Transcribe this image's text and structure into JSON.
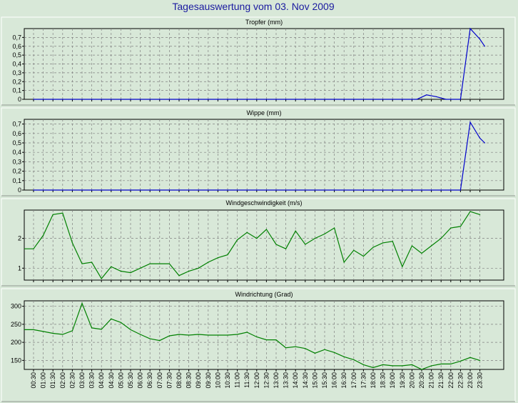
{
  "title": "Tagesauswertung vom 03. Nov 2009",
  "x_labels": [
    "00:30",
    "01:00",
    "01:30",
    "02:00",
    "02:30",
    "03:00",
    "03:30",
    "04:00",
    "04:30",
    "05:00",
    "05:30",
    "06:00",
    "06:30",
    "07:00",
    "07:30",
    "08:00",
    "08:30",
    "09:00",
    "09:30",
    "10:00",
    "10:30",
    "11:00",
    "11:30",
    "12:00",
    "12:30",
    "13:00",
    "13:30",
    "14:00",
    "14:30",
    "15:00",
    "15:30",
    "16:00",
    "16:30",
    "17:00",
    "17:30",
    "18:00",
    "18:30",
    "19:00",
    "19:30",
    "20:00",
    "20:30",
    "21:00",
    "21:30",
    "22:00",
    "22:30",
    "23:00",
    "23:30"
  ],
  "colors": {
    "background": "#d8e8d8",
    "panel": "#d8e8d8",
    "title": "#1a1aa0",
    "rain": "#0000cc",
    "wind": "#008000",
    "grid": "#808080"
  },
  "chart_data": [
    {
      "type": "line",
      "title": "Tropfer (mm)",
      "color": "#0000cc",
      "ylim": [
        0,
        0.8
      ],
      "yticks": [
        0,
        0.1,
        0.2,
        0.3,
        0.4,
        0.5,
        0.6,
        0.7
      ],
      "ytick_labels": [
        "0",
        "0,1",
        "0,2",
        "0,3",
        "0,4",
        "0,5",
        "0,6",
        "0,7"
      ],
      "x": [
        0,
        39.5,
        40.5,
        41.5,
        42.5,
        44,
        45,
        46,
        46.5
      ],
      "values": [
        0,
        0,
        0.05,
        0.03,
        0,
        0,
        0.8,
        0.68,
        0.6
      ]
    },
    {
      "type": "line",
      "title": "Wippe (mm)",
      "color": "#0000cc",
      "ylim": [
        0,
        0.75
      ],
      "yticks": [
        0,
        0.1,
        0.2,
        0.3,
        0.4,
        0.5,
        0.6,
        0.7
      ],
      "ytick_labels": [
        "0",
        "0,1",
        "0,2",
        "0,3",
        "0,4",
        "0,5",
        "0,6",
        "0,7"
      ],
      "x": [
        0,
        44,
        45,
        46,
        46.5
      ],
      "values": [
        0,
        0,
        0.72,
        0.55,
        0.5
      ]
    },
    {
      "type": "line",
      "title": "Windgeschwindigkeit (m/s)",
      "color": "#008000",
      "ylim": [
        0.6,
        2.95
      ],
      "yticks": [
        1,
        2
      ],
      "ytick_labels": [
        "1",
        "2"
      ],
      "x": [
        -1,
        0,
        1,
        2,
        3,
        4,
        5,
        6,
        7,
        8,
        9,
        10,
        11,
        12,
        13,
        14,
        15,
        16,
        17,
        18,
        19,
        20,
        21,
        22,
        23,
        24,
        25,
        26,
        27,
        28,
        29,
        30,
        31,
        32,
        33,
        34,
        35,
        36,
        37,
        38,
        39,
        40,
        41,
        42,
        43,
        44,
        45,
        46
      ],
      "values": [
        1.65,
        1.65,
        2.1,
        2.8,
        2.85,
        1.85,
        1.15,
        1.2,
        0.65,
        1.05,
        0.9,
        0.85,
        1.0,
        1.15,
        1.15,
        1.15,
        0.75,
        0.9,
        1.0,
        1.2,
        1.35,
        1.45,
        1.95,
        2.2,
        2.0,
        2.3,
        1.8,
        1.65,
        2.25,
        1.8,
        2.0,
        2.15,
        2.35,
        1.2,
        1.6,
        1.4,
        1.7,
        1.85,
        1.9,
        1.05,
        1.75,
        1.5,
        1.75,
        2.0,
        2.35,
        2.4,
        2.9,
        2.8
      ]
    },
    {
      "type": "line",
      "title": "Windrichtung (Grad)",
      "color": "#008000",
      "ylim": [
        125,
        315
      ],
      "yticks": [
        150,
        200,
        250,
        300
      ],
      "ytick_labels": [
        "150",
        "200",
        "250",
        "300"
      ],
      "x": [
        -1,
        0,
        1,
        2,
        3,
        4,
        5,
        6,
        7,
        8,
        9,
        10,
        11,
        12,
        13,
        14,
        15,
        16,
        17,
        18,
        19,
        20,
        21,
        22,
        23,
        24,
        25,
        26,
        27,
        28,
        29,
        30,
        31,
        32,
        33,
        34,
        35,
        36,
        37,
        38,
        39,
        40,
        41,
        42,
        43,
        44,
        45,
        46
      ],
      "values": [
        235,
        235,
        230,
        225,
        222,
        232,
        308,
        240,
        236,
        265,
        255,
        235,
        222,
        210,
        205,
        218,
        222,
        220,
        222,
        220,
        220,
        220,
        222,
        228,
        215,
        207,
        207,
        185,
        188,
        183,
        170,
        180,
        172,
        160,
        152,
        138,
        130,
        138,
        135,
        135,
        138,
        125,
        135,
        140,
        140,
        148,
        158,
        150
      ]
    }
  ]
}
